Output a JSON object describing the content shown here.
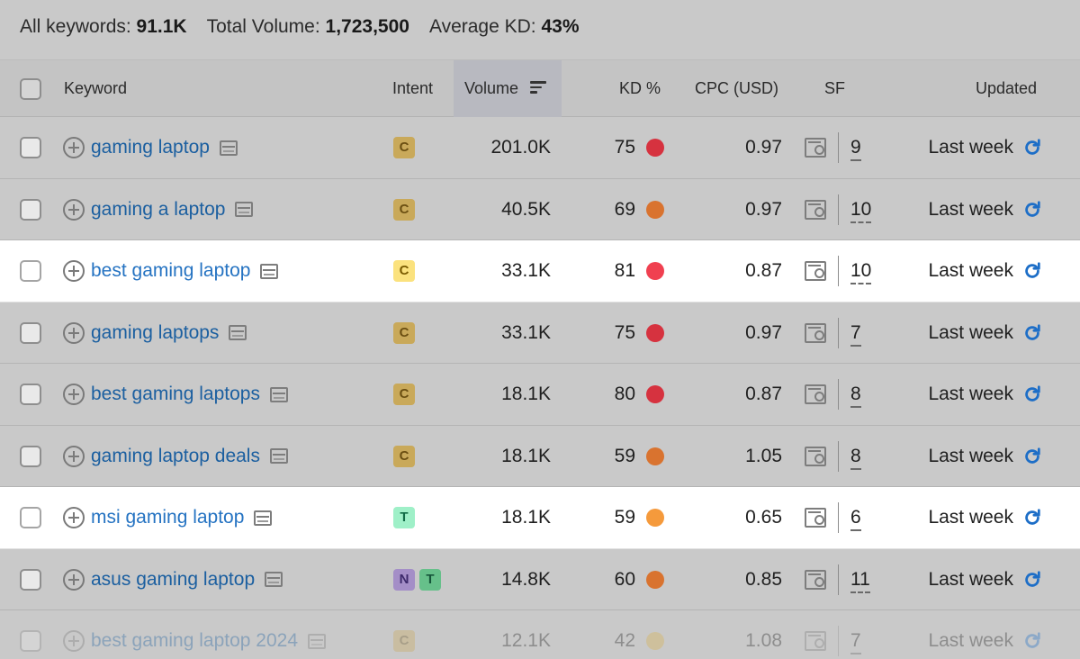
{
  "summary": {
    "keywords_label": "All keywords:",
    "keywords_value": "91.1K",
    "volume_label": "Total Volume:",
    "volume_value": "1,723,500",
    "kd_label": "Average KD:",
    "kd_value": "43%"
  },
  "headers": {
    "keyword": "Keyword",
    "intent": "Intent",
    "volume": "Volume",
    "kd": "KD %",
    "cpc": "CPC (USD)",
    "sf": "SF",
    "updated": "Updated"
  },
  "colors": {
    "kd_red": "#d6323f",
    "kd_orange": "#d9732f",
    "kd_red_hl": "#f04050",
    "kd_orange_hl": "#f59a3c",
    "link": "#1b5fa0",
    "refresh": "#1d6ec7"
  },
  "rows": [
    {
      "keyword": "gaming laptop",
      "intent": [
        "C"
      ],
      "volume": "201.0K",
      "kd": "75",
      "kd_color": "#d6323f",
      "cpc": "0.97",
      "sf": "9",
      "updated": "Last week"
    },
    {
      "keyword": "gaming a laptop",
      "intent": [
        "C"
      ],
      "volume": "40.5K",
      "kd": "69",
      "kd_color": "#d9732f",
      "cpc": "0.97",
      "sf": "10",
      "updated": "Last week"
    },
    {
      "keyword": "best gaming laptop",
      "intent": [
        "C"
      ],
      "volume": "33.1K",
      "kd": "81",
      "kd_color": "#f04050",
      "cpc": "0.87",
      "sf": "10",
      "updated": "Last week"
    },
    {
      "keyword": "gaming laptops",
      "intent": [
        "C"
      ],
      "volume": "33.1K",
      "kd": "75",
      "kd_color": "#d6323f",
      "cpc": "0.97",
      "sf": "7",
      "updated": "Last week"
    },
    {
      "keyword": "best gaming laptops",
      "intent": [
        "C"
      ],
      "volume": "18.1K",
      "kd": "80",
      "kd_color": "#d6323f",
      "cpc": "0.87",
      "sf": "8",
      "updated": "Last week"
    },
    {
      "keyword": "gaming laptop deals",
      "intent": [
        "C"
      ],
      "volume": "18.1K",
      "kd": "59",
      "kd_color": "#d9732f",
      "cpc": "1.05",
      "sf": "8",
      "updated": "Last week"
    },
    {
      "keyword": "msi gaming laptop",
      "intent": [
        "T"
      ],
      "volume": "18.1K",
      "kd": "59",
      "kd_color": "#f59a3c",
      "cpc": "0.65",
      "sf": "6",
      "updated": "Last week"
    },
    {
      "keyword": "asus gaming laptop",
      "intent": [
        "N",
        "T"
      ],
      "volume": "14.8K",
      "kd": "60",
      "kd_color": "#d9732f",
      "cpc": "0.85",
      "sf": "11",
      "updated": "Last week"
    },
    {
      "keyword": "best gaming laptop 2024",
      "intent": [
        "C"
      ],
      "volume": "12.1K",
      "kd": "42",
      "kd_color": "#d9b24a",
      "cpc": "1.08",
      "sf": "7",
      "updated": "Last week"
    }
  ]
}
